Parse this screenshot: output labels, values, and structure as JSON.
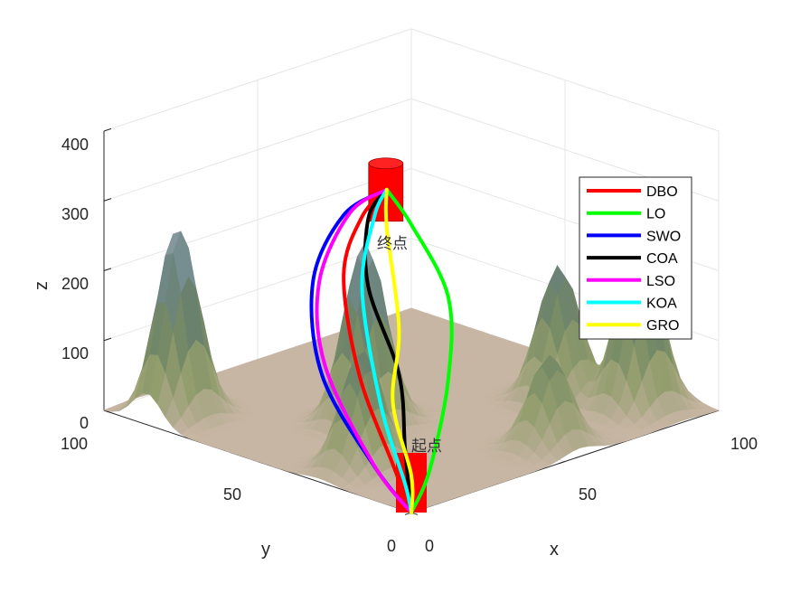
{
  "chart_data": {
    "type": "line",
    "subtype": "3d path planning over terrain surface",
    "xlabel": "x",
    "ylabel": "y",
    "zlabel": "z",
    "xlim": [
      0,
      100
    ],
    "ylim": [
      0,
      100
    ],
    "zlim": [
      0,
      400
    ],
    "x_ticks": [
      "0",
      "50",
      "100"
    ],
    "y_ticks": [
      "0",
      "50",
      "100"
    ],
    "z_ticks": [
      "0",
      "100",
      "200",
      "300",
      "400"
    ],
    "grid": true,
    "legend_position": "right",
    "start_label": "起点",
    "end_label": "终点",
    "start": {
      "x": 0,
      "y": 0,
      "z": 0
    },
    "end": {
      "x": 72,
      "y": 80,
      "z": 240
    },
    "terrain_peaks": [
      {
        "x": 10,
        "y": 86,
        "h": 270
      },
      {
        "x": 37,
        "y": 52,
        "h": 258
      },
      {
        "x": 14,
        "y": 30,
        "h": 168
      },
      {
        "x": 88,
        "y": 14,
        "h": 255
      },
      {
        "x": 80,
        "y": 32,
        "h": 190
      },
      {
        "x": 55,
        "y": 10,
        "h": 130
      }
    ],
    "series": [
      {
        "name": "DBO",
        "color": "#ff0000",
        "points": [
          [
            0,
            0,
            0
          ],
          [
            12,
            18,
            25
          ],
          [
            25,
            42,
            100
          ],
          [
            42,
            64,
            185
          ],
          [
            60,
            76,
            225
          ],
          [
            72,
            80,
            240
          ]
        ]
      },
      {
        "name": "LO",
        "color": "#00ff00",
        "points": [
          [
            0,
            0,
            0
          ],
          [
            12,
            6,
            35
          ],
          [
            30,
            18,
            120
          ],
          [
            50,
            38,
            180
          ],
          [
            64,
            64,
            225
          ],
          [
            72,
            80,
            240
          ]
        ]
      },
      {
        "name": "SWO",
        "color": "#0000ff",
        "points": [
          [
            0,
            0,
            0
          ],
          [
            8,
            20,
            25
          ],
          [
            15,
            44,
            110
          ],
          [
            32,
            64,
            190
          ],
          [
            56,
            78,
            230
          ],
          [
            72,
            80,
            240
          ]
        ]
      },
      {
        "name": "COA",
        "color": "#000000",
        "points": [
          [
            0,
            0,
            0
          ],
          [
            14,
            16,
            45
          ],
          [
            28,
            32,
            110
          ],
          [
            42,
            56,
            180
          ],
          [
            60,
            74,
            225
          ],
          [
            72,
            80,
            240
          ]
        ]
      },
      {
        "name": "LSO",
        "color": "#ff00ff",
        "points": [
          [
            0,
            0,
            0
          ],
          [
            10,
            22,
            20
          ],
          [
            20,
            48,
            110
          ],
          [
            36,
            66,
            180
          ],
          [
            58,
            78,
            230
          ],
          [
            72,
            80,
            240
          ]
        ]
      },
      {
        "name": "KOA",
        "color": "#00ffff",
        "points": [
          [
            0,
            0,
            0
          ],
          [
            6,
            8,
            20
          ],
          [
            14,
            24,
            100
          ],
          [
            38,
            54,
            185
          ],
          [
            62,
            74,
            225
          ],
          [
            72,
            80,
            240
          ]
        ]
      },
      {
        "name": "GRO",
        "color": "#ffff00",
        "points": [
          [
            0,
            0,
            0
          ],
          [
            8,
            8,
            30
          ],
          [
            20,
            26,
            90
          ],
          [
            40,
            44,
            140
          ],
          [
            62,
            70,
            215
          ],
          [
            72,
            80,
            240
          ]
        ]
      }
    ]
  }
}
